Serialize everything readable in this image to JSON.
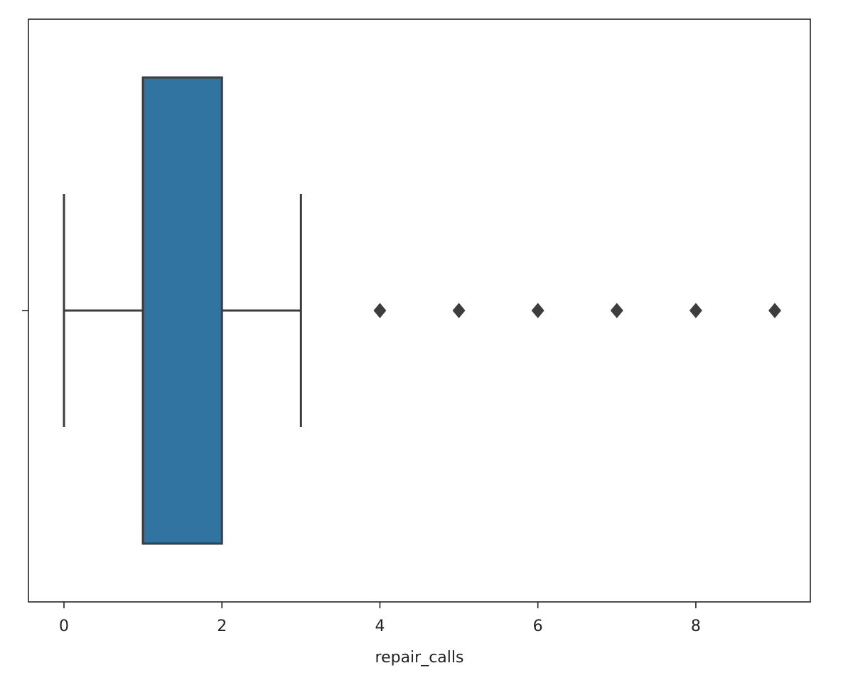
{
  "chart_data": {
    "type": "box",
    "xlabel": "repair_calls",
    "xlim": [
      -0.45,
      9.45
    ],
    "xticks": [
      0,
      2,
      4,
      6,
      8
    ],
    "color": "#3274a1",
    "line_color": "#3d3d3d",
    "boxes": [
      {
        "min": 0,
        "q1": 1,
        "median": 1,
        "q3": 2,
        "max": 3,
        "outliers": [
          4,
          5,
          6,
          7,
          8,
          9
        ]
      }
    ]
  }
}
